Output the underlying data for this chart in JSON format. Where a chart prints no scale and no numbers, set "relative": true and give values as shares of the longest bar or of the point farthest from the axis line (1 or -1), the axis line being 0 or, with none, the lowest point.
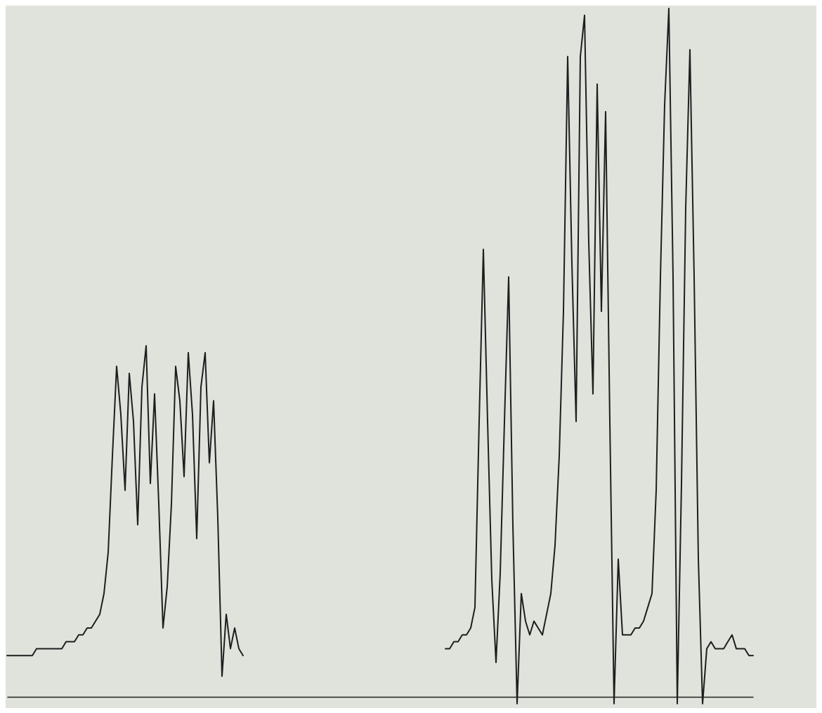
{
  "chart_data": {
    "type": "line",
    "relative": true,
    "categories": [
      null,
      null,
      null,
      null,
      null,
      null,
      null,
      null,
      null,
      null,
      null,
      null,
      null,
      null,
      null,
      null,
      null,
      null,
      null,
      null,
      null,
      null,
      null,
      null,
      null,
      null,
      null,
      null,
      null,
      null,
      null,
      null,
      null,
      null,
      null,
      null,
      null,
      null,
      null,
      null,
      null,
      null,
      null,
      null,
      null,
      null,
      null,
      null,
      null,
      null,
      null,
      null,
      null,
      null,
      null,
      null,
      null,
      null,
      null,
      null,
      null,
      null,
      null,
      null,
      null,
      null,
      null,
      null,
      null,
      null,
      null,
      null,
      null,
      null,
      null,
      null,
      null,
      null,
      null,
      null,
      null,
      null,
      null,
      null,
      null,
      null,
      null,
      null,
      null,
      null,
      null,
      null,
      null,
      null,
      null,
      null,
      null,
      null,
      null,
      null,
      null,
      null,
      null,
      null,
      null,
      null,
      null,
      null,
      null,
      null,
      null,
      null,
      null,
      null,
      null,
      null,
      null,
      null,
      null,
      null,
      null,
      null,
      null,
      null,
      null,
      null,
      null,
      null,
      null,
      null,
      null,
      null,
      null,
      null,
      null,
      null,
      null,
      null,
      null,
      null,
      null,
      null,
      null,
      null,
      null,
      null,
      null,
      null,
      null,
      null,
      null,
      null,
      null,
      null,
      null,
      null,
      null,
      null,
      null,
      null,
      null,
      null,
      null,
      null,
      null,
      null,
      null,
      null,
      null,
      null,
      null,
      null,
      null,
      null,
      null,
      null,
      null,
      null
    ],
    "series": [
      {
        "color": "#1e1e1e",
        "values": [
          0.06,
          0.06,
          0.06,
          0.06,
          0.06,
          0.06,
          0.06,
          0.07,
          0.07,
          0.07,
          0.07,
          0.07,
          0.07,
          0.07,
          0.08,
          0.08,
          0.08,
          0.09,
          0.09,
          0.1,
          0.1,
          0.11,
          0.12,
          0.15,
          0.21,
          0.35,
          0.48,
          0.41,
          0.3,
          0.47,
          0.4,
          0.25,
          0.45,
          0.51,
          0.31,
          0.44,
          0.28,
          0.1,
          0.16,
          0.28,
          0.48,
          0.43,
          0.32,
          0.5,
          0.41,
          0.23,
          0.45,
          0.5,
          0.34,
          0.43,
          0.26,
          0.03,
          0.12,
          0.07,
          0.1,
          0.07,
          0.06,
          null,
          null,
          null,
          null,
          null,
          null,
          null,
          null,
          null,
          null,
          null,
          null,
          null,
          null,
          null,
          null,
          null,
          null,
          null,
          null,
          null,
          null,
          null,
          null,
          null,
          null,
          null,
          null,
          null,
          null,
          null,
          null,
          null,
          null,
          null,
          null,
          null,
          null,
          null,
          null,
          null,
          null,
          null,
          null,
          null,
          null,
          null,
          0.07,
          0.07,
          0.08,
          0.08,
          0.09,
          0.09,
          0.1,
          0.13,
          0.4,
          0.65,
          0.4,
          0.17,
          0.05,
          0.18,
          0.4,
          0.61,
          0.25,
          -0.01,
          0.15,
          0.11,
          0.09,
          0.11,
          0.1,
          0.09,
          0.12,
          0.15,
          0.22,
          0.35,
          0.56,
          0.93,
          0.63,
          0.4,
          0.93,
          0.99,
          0.66,
          0.44,
          0.89,
          0.56,
          0.85,
          0.4,
          -0.01,
          0.2,
          0.09,
          0.09,
          0.09,
          0.1,
          0.1,
          0.11,
          0.13,
          0.15,
          0.3,
          0.61,
          0.86,
          1.0,
          0.61,
          -0.01,
          0.31,
          0.71,
          0.94,
          0.61,
          0.2,
          -0.01,
          0.07,
          0.08,
          0.07,
          0.07,
          0.07,
          0.08,
          0.09,
          0.07,
          0.07,
          0.07,
          0.06,
          0.06
        ]
      }
    ]
  }
}
